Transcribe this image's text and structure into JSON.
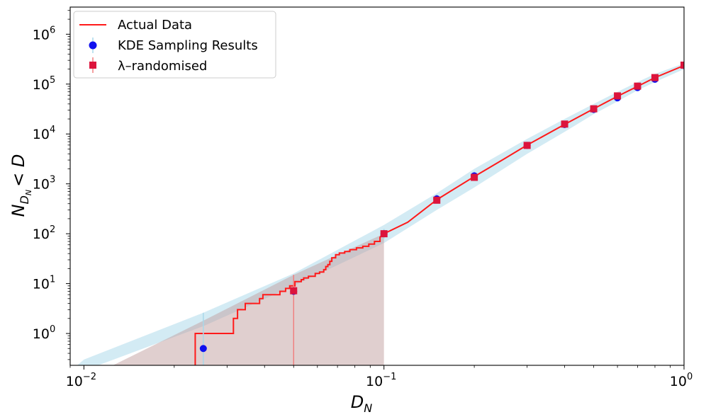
{
  "chart_data": {
    "type": "line",
    "xlabel": {
      "main": "D",
      "sub": "N"
    },
    "ylabel": {
      "main": "N",
      "sub": "D",
      "subsub": "N",
      "rest": "< D"
    },
    "x_scale": "log",
    "y_scale": "log",
    "xlim": [
      0.009,
      1.0
    ],
    "ylim": [
      0.23,
      3500000
    ],
    "x_ticks": [
      {
        "value": 0.01,
        "base": "10",
        "exp": "−2"
      },
      {
        "value": 0.1,
        "base": "10",
        "exp": "−1"
      },
      {
        "value": 1.0,
        "base": "10",
        "exp": "0"
      }
    ],
    "y_ticks": [
      {
        "value": 1,
        "base": "10",
        "exp": "0"
      },
      {
        "value": 10,
        "base": "10",
        "exp": "1"
      },
      {
        "value": 100,
        "base": "10",
        "exp": "2"
      },
      {
        "value": 1000,
        "base": "10",
        "exp": "3"
      },
      {
        "value": 10000,
        "base": "10",
        "exp": "4"
      },
      {
        "value": 100000,
        "base": "10",
        "exp": "5"
      },
      {
        "value": 1000000,
        "base": "10",
        "exp": "6"
      }
    ],
    "grid": false,
    "legend_placement": "top-left",
    "legend": [
      {
        "label": "Actual Data",
        "kind": "line",
        "color": "#ff1a1a"
      },
      {
        "label": "KDE Sampling Results",
        "kind": "circle",
        "color": "#1010ee"
      },
      {
        "label": "λ–randomised",
        "kind": "square",
        "color": "#dc143c"
      }
    ],
    "actual_data": {
      "color": "#ff1a1a",
      "steps": [
        [
          0.0235,
          0.23
        ],
        [
          0.0235,
          1
        ],
        [
          0.0315,
          1
        ],
        [
          0.0315,
          2
        ],
        [
          0.0325,
          2
        ],
        [
          0.0325,
          3
        ],
        [
          0.0345,
          3
        ],
        [
          0.0345,
          4
        ],
        [
          0.0385,
          4
        ],
        [
          0.0385,
          5
        ],
        [
          0.0395,
          5
        ],
        [
          0.0395,
          6
        ],
        [
          0.045,
          6
        ],
        [
          0.045,
          7
        ],
        [
          0.047,
          7
        ],
        [
          0.047,
          8
        ],
        [
          0.0485,
          8
        ],
        [
          0.0485,
          9
        ],
        [
          0.0505,
          9
        ],
        [
          0.0505,
          11
        ],
        [
          0.053,
          11
        ],
        [
          0.053,
          12
        ],
        [
          0.054,
          12
        ],
        [
          0.054,
          13
        ],
        [
          0.056,
          13
        ],
        [
          0.056,
          14
        ],
        [
          0.059,
          14
        ],
        [
          0.059,
          16
        ],
        [
          0.061,
          16
        ],
        [
          0.061,
          17
        ],
        [
          0.063,
          17
        ],
        [
          0.063,
          19
        ],
        [
          0.064,
          19
        ],
        [
          0.064,
          22
        ],
        [
          0.065,
          22
        ],
        [
          0.065,
          24
        ],
        [
          0.066,
          24
        ],
        [
          0.066,
          28
        ],
        [
          0.067,
          28
        ],
        [
          0.067,
          33
        ],
        [
          0.069,
          33
        ],
        [
          0.069,
          38
        ],
        [
          0.071,
          38
        ],
        [
          0.071,
          41
        ],
        [
          0.074,
          41
        ],
        [
          0.074,
          44
        ],
        [
          0.077,
          44
        ],
        [
          0.077,
          48
        ],
        [
          0.081,
          48
        ],
        [
          0.081,
          52
        ],
        [
          0.085,
          52
        ],
        [
          0.085,
          56
        ],
        [
          0.089,
          56
        ],
        [
          0.089,
          62
        ],
        [
          0.093,
          62
        ],
        [
          0.093,
          70
        ],
        [
          0.097,
          70
        ],
        [
          0.097,
          85
        ],
        [
          0.1,
          100
        ],
        [
          0.12,
          170
        ],
        [
          0.15,
          480
        ],
        [
          0.2,
          1400
        ],
        [
          0.25,
          3100
        ],
        [
          0.3,
          6000
        ],
        [
          0.4,
          15500
        ],
        [
          0.5,
          32000
        ],
        [
          0.6,
          57000
        ],
        [
          0.7,
          90000
        ],
        [
          0.8,
          135000
        ],
        [
          1.0,
          235000
        ]
      ]
    },
    "kde_band": {
      "color": "#a8d8ea",
      "x": [
        0.0095,
        0.01,
        0.025,
        0.05,
        0.1,
        0.15,
        0.2,
        0.3,
        0.4,
        0.5,
        0.6,
        0.7,
        0.8,
        1.0
      ],
      "upper": [
        0.23,
        0.3,
        2.6,
        16,
        150,
        650,
        2000,
        8000,
        20000,
        40000,
        70000,
        110000,
        160000,
        260000
      ],
      "lower": [
        0.14,
        0.18,
        1.4,
        9,
        65,
        300,
        850,
        4000,
        11000,
        25000,
        45000,
        75000,
        110000,
        200000
      ]
    },
    "random_band": {
      "color": "#c2a0a0",
      "x": [
        0.0125,
        0.025,
        0.05,
        0.1
      ],
      "upper": [
        0.23,
        1.8,
        15,
        100
      ],
      "lower": [
        0.23,
        0.23,
        0.23,
        0.23
      ]
    },
    "kde_points": [
      {
        "x": 0.025,
        "y": 0.5,
        "yerr": [
          0.23,
          2.6
        ]
      },
      {
        "x": 0.05,
        "y": 7,
        "yerr": [
          0.23,
          15
        ]
      },
      {
        "x": 0.1,
        "y": 100,
        "yerr": [
          80,
          125
        ]
      },
      {
        "x": 0.15,
        "y": 500,
        "yerr": [
          400,
          620
        ]
      },
      {
        "x": 0.2,
        "y": 1450,
        "yerr": [
          1200,
          1750
        ]
      },
      {
        "x": 0.3,
        "y": 5900,
        "yerr": [
          5100,
          6800
        ]
      },
      {
        "x": 0.4,
        "y": 15500,
        "yerr": [
          13500,
          17500
        ]
      },
      {
        "x": 0.5,
        "y": 31000,
        "yerr": [
          27500,
          35000
        ]
      },
      {
        "x": 0.6,
        "y": 53000,
        "yerr": [
          47000,
          60000
        ]
      },
      {
        "x": 0.7,
        "y": 85000,
        "yerr": [
          76000,
          95000
        ]
      },
      {
        "x": 0.8,
        "y": 125000,
        "yerr": [
          112000,
          140000
        ]
      },
      {
        "x": 1.0,
        "y": 235000,
        "yerr": [
          210000,
          260000
        ]
      }
    ],
    "random_points": [
      {
        "x": 0.05,
        "y": 7.2,
        "yerr": [
          0.23,
          15
        ]
      },
      {
        "x": 0.1,
        "y": 100,
        "yerr": [
          85,
          118
        ]
      },
      {
        "x": 0.15,
        "y": 470,
        "yerr": [
          420,
          530
        ]
      },
      {
        "x": 0.2,
        "y": 1350,
        "yerr": [
          1200,
          1500
        ]
      },
      {
        "x": 0.3,
        "y": 5900,
        "yerr": [
          5400,
          6400
        ]
      },
      {
        "x": 0.4,
        "y": 15800,
        "yerr": [
          14500,
          17000
        ]
      },
      {
        "x": 0.5,
        "y": 32000,
        "yerr": [
          29500,
          34500
        ]
      },
      {
        "x": 0.6,
        "y": 58000,
        "yerr": [
          53000,
          63000
        ]
      },
      {
        "x": 0.7,
        "y": 91000,
        "yerr": [
          84000,
          98000
        ]
      },
      {
        "x": 0.8,
        "y": 135000,
        "yerr": [
          125000,
          145000
        ]
      },
      {
        "x": 1.0,
        "y": 240000,
        "yerr": [
          225000,
          255000
        ]
      }
    ]
  }
}
